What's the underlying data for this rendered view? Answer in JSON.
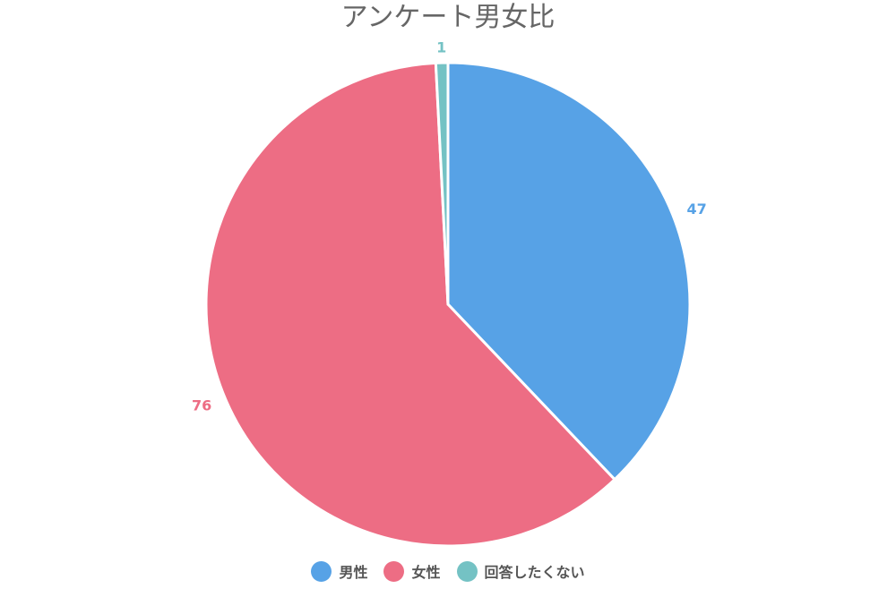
{
  "chart_data": {
    "type": "pie",
    "title": "アンケート男女比",
    "categories": [
      "男性",
      "女性",
      "回答したくない"
    ],
    "values": [
      47,
      76,
      1
    ],
    "colors": [
      "#57A2E6",
      "#ED6D84",
      "#74C2C4"
    ],
    "legend_position": "bottom",
    "start_angle": "top",
    "direction": "clockwise"
  }
}
